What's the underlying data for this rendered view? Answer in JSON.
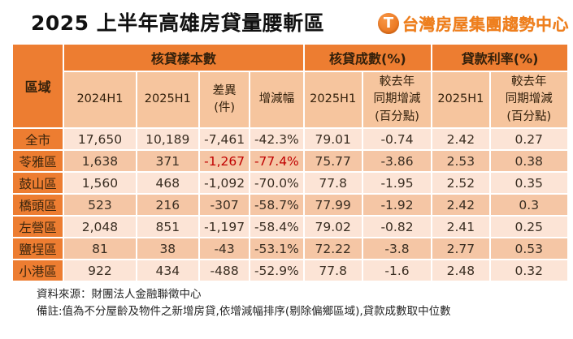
{
  "title": "2025 上半年高雄房貸量腰斬區",
  "logo": {
    "icon_letter": "T",
    "text": "台灣房屋集團趨勢中心"
  },
  "table": {
    "corner_header": "區域",
    "groups": [
      {
        "label": "核貸樣本數",
        "span": 4
      },
      {
        "label": "核貸成數(%)",
        "span": 2
      },
      {
        "label": "貸款利率(%)",
        "span": 2
      }
    ],
    "subheaders": [
      "2024H1",
      "2025H1",
      "差異\n(件)",
      "增減幅",
      "2025H1",
      "較去年\n同期增減\n(百分點)",
      "2025H1",
      "較去年\n同期增減\n(百分點)"
    ],
    "rows": [
      {
        "region": "全市",
        "values": [
          "17,650",
          "10,189",
          "-7,461",
          "-42.3%",
          "79.01",
          "-0.74",
          "2.42",
          "0.27"
        ],
        "red_indices": []
      },
      {
        "region": "苓雅區",
        "values": [
          "1,638",
          "371",
          "-1,267",
          "-77.4%",
          "75.77",
          "-3.86",
          "2.53",
          "0.38"
        ],
        "red_indices": [
          2,
          3
        ]
      },
      {
        "region": "鼓山區",
        "values": [
          "1,560",
          "468",
          "-1,092",
          "-70.0%",
          "77.8",
          "-1.95",
          "2.52",
          "0.35"
        ],
        "red_indices": []
      },
      {
        "region": "橋頭區",
        "values": [
          "523",
          "216",
          "-307",
          "-58.7%",
          "77.99",
          "-1.92",
          "2.42",
          "0.3"
        ],
        "red_indices": []
      },
      {
        "region": "左營區",
        "values": [
          "2,048",
          "851",
          "-1,197",
          "-58.4%",
          "79.02",
          "-0.82",
          "2.41",
          "0.25"
        ],
        "red_indices": []
      },
      {
        "region": "鹽埕區",
        "values": [
          "81",
          "38",
          "-43",
          "-53.1%",
          "72.22",
          "-3.8",
          "2.77",
          "0.53"
        ],
        "red_indices": []
      },
      {
        "region": "小港區",
        "values": [
          "922",
          "434",
          "-488",
          "-52.9%",
          "77.8",
          "-1.6",
          "2.48",
          "0.32"
        ],
        "red_indices": []
      }
    ]
  },
  "footnotes": [
    "資料來源：財團法人金融聯徵中心",
    "備註:值為不分屋齡及物件之新增房貸,依增減幅排序(剔除偏鄉區域),貸款成數取中位數"
  ],
  "colors": {
    "header_orange": "#ed7d31",
    "row_light": "#fce4d6",
    "row_dark": "#f5c6a5",
    "negative_red": "#c00000",
    "logo_orange": "#ef7f1d",
    "title_black": "#111111"
  }
}
